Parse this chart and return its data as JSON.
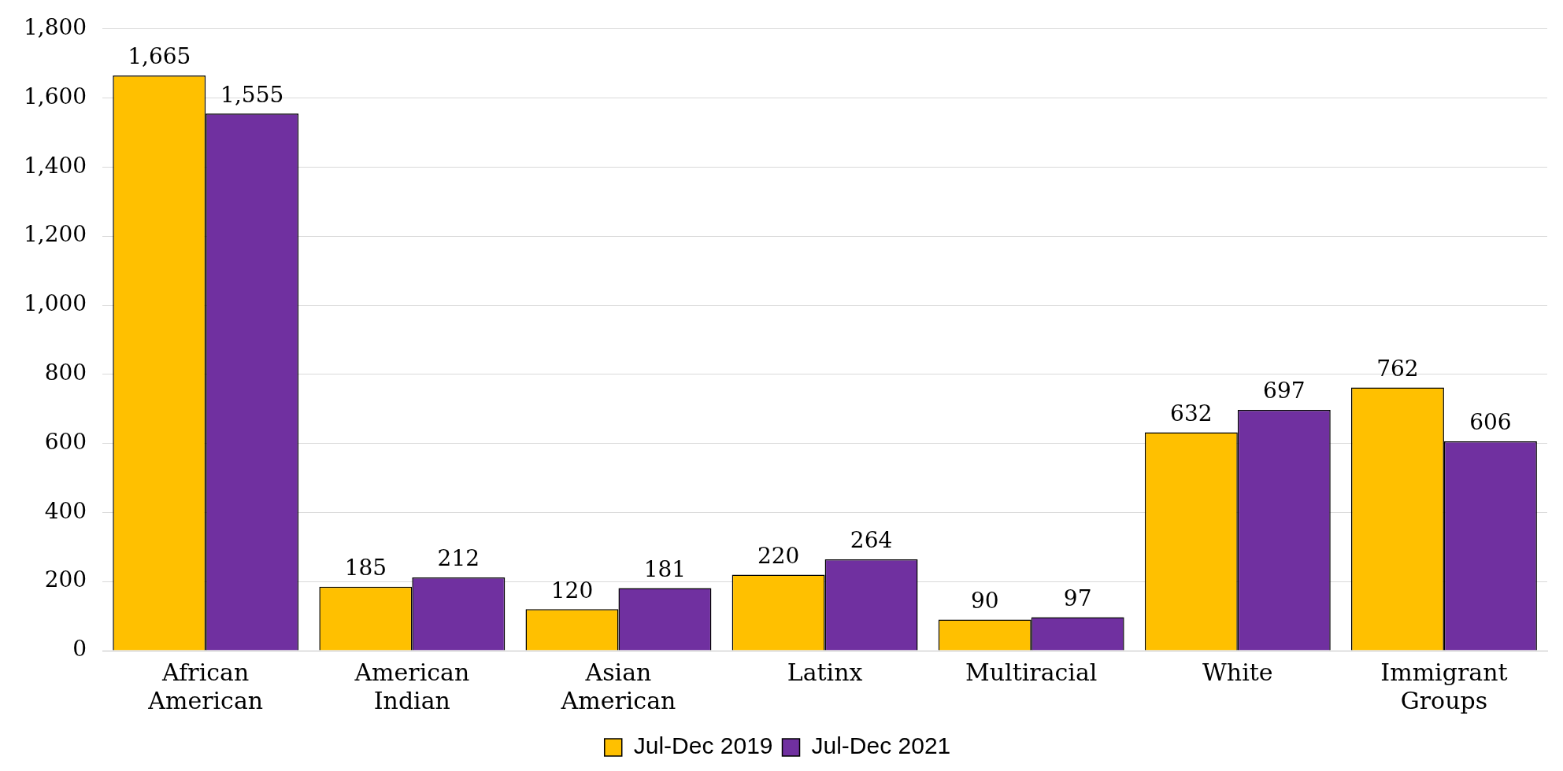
{
  "chart_data": {
    "type": "bar",
    "categories": [
      "African American",
      "American Indian",
      "Asian American",
      "Latinx",
      "Multiracial",
      "White",
      "Immigrant Groups"
    ],
    "series": [
      {
        "name": "Jul-Dec 2019",
        "color": "#ffc000",
        "values": [
          1665,
          185,
          120,
          220,
          90,
          632,
          762
        ],
        "value_labels": [
          "1,665",
          "185",
          "120",
          "220",
          "90",
          "632",
          "762"
        ]
      },
      {
        "name": "Jul-Dec 2021",
        "color": "#7030a0",
        "values": [
          1555,
          212,
          181,
          264,
          97,
          697,
          606
        ],
        "value_labels": [
          "1,555",
          "212",
          "181",
          "264",
          "97",
          "697",
          "606"
        ]
      }
    ],
    "ylim": [
      0,
      1800
    ],
    "yticks": [
      0,
      200,
      400,
      600,
      800,
      {
        "value": 1000,
        "label": "1,000"
      },
      {
        "value": 1200,
        "label": "1,200"
      },
      {
        "value": 1400,
        "label": "1,400"
      },
      {
        "value": 1600,
        "label": "1,600"
      },
      {
        "value": 1800,
        "label": "1,800"
      }
    ],
    "grid": "y",
    "legend": "bottom"
  }
}
